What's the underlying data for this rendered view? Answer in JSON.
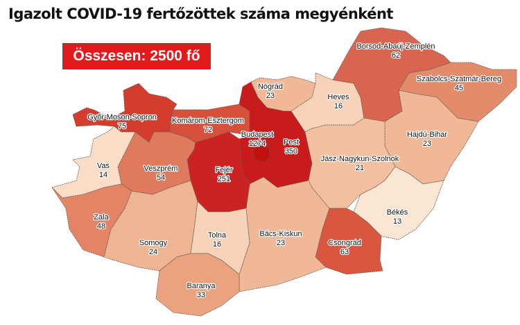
{
  "title": "Igazolt COVID-19 fertőzöttek száma megyénként",
  "total_label": "Összesen: 2500 fő",
  "colors": {
    "lowest": "#f9e0cc",
    "low": "#f0b896",
    "mid": "#e3896a",
    "high": "#d65a45",
    "highest": "#c91b1b",
    "total_box": "#e31a1c"
  },
  "counties": [
    {
      "name": "Győr-Moson-Sopron",
      "value": "75",
      "fill": "#d43c2e"
    },
    {
      "name": "Komárom-Esztergom",
      "value": "72",
      "fill": "#d6503c"
    },
    {
      "name": "Pest",
      "value": "350",
      "fill": "#c91b1b"
    },
    {
      "name": "Budapest",
      "value": "1274",
      "fill": "#c01010"
    },
    {
      "name": "Nógrád",
      "value": "23",
      "fill": "#f0b896"
    },
    {
      "name": "Heves",
      "value": "16",
      "fill": "#f6d3b8"
    },
    {
      "name": "Borsod-Abaúj-Zemplén",
      "value": "62",
      "fill": "#d96450"
    },
    {
      "name": "Szabolcs-Szatmár-Bereg",
      "value": "45",
      "fill": "#e38c6c"
    },
    {
      "name": "Hajdú-Bihar",
      "value": "23",
      "fill": "#f0b896"
    },
    {
      "name": "Jász-Nagykun-Szolnok",
      "value": "21",
      "fill": "#f2bf9f"
    },
    {
      "name": "Békés",
      "value": "13",
      "fill": "#fbe5d3"
    },
    {
      "name": "Csongrád",
      "value": "63",
      "fill": "#d9563f"
    },
    {
      "name": "Bács-Kiskun",
      "value": "23",
      "fill": "#f0b896"
    },
    {
      "name": "Fejér",
      "value": "251",
      "fill": "#cc2222"
    },
    {
      "name": "Veszprém",
      "value": "54",
      "fill": "#df7a5e"
    },
    {
      "name": "Vas",
      "value": "14",
      "fill": "#f9ddc6"
    },
    {
      "name": "Zala",
      "value": "48",
      "fill": "#e38466"
    },
    {
      "name": "Somogy",
      "value": "24",
      "fill": "#efb592"
    },
    {
      "name": "Tolna",
      "value": "16",
      "fill": "#f6d3b8"
    },
    {
      "name": "Baranya",
      "value": "33",
      "fill": "#eba27f"
    }
  ]
}
